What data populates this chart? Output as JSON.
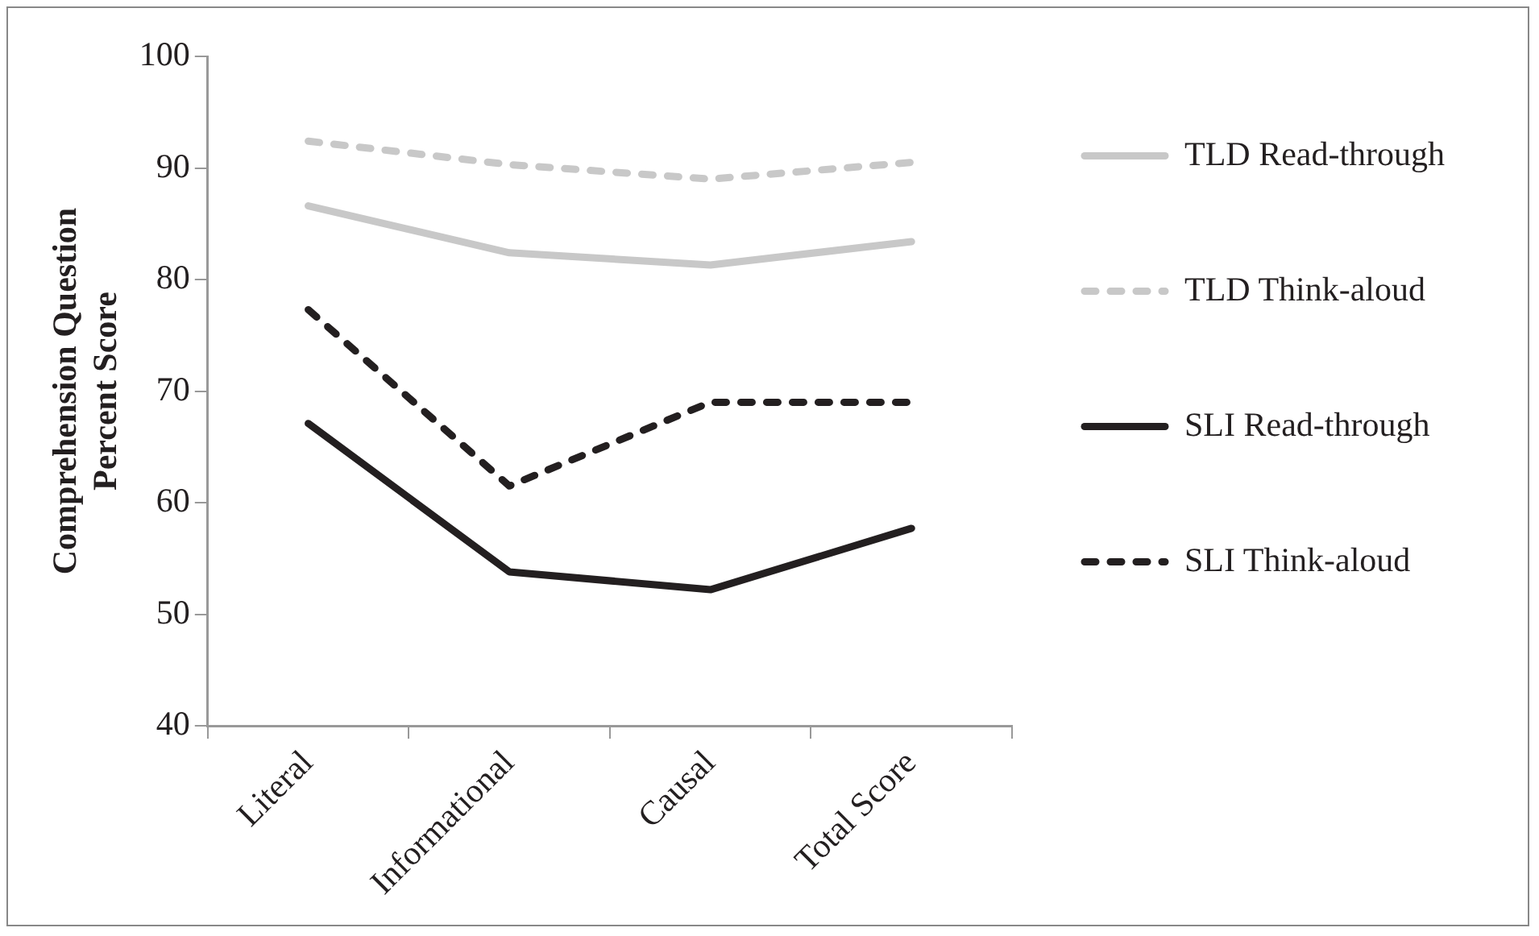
{
  "chart_data": {
    "type": "line",
    "ylabel": "Comprehension Question\nPercent Score",
    "categories": [
      "Literal",
      "Informational",
      "Causal",
      "Total Score"
    ],
    "series": [
      {
        "name": "TLD Read-through",
        "color": "#c8c8c8",
        "line_style": "solid",
        "values": [
          86.6,
          82.4,
          81.3,
          83.4
        ]
      },
      {
        "name": "TLD Think-aloud",
        "color": "#c8c8c8",
        "line_style": "dashed",
        "values": [
          92.4,
          90.3,
          89.0,
          90.5
        ]
      },
      {
        "name": "SLI Read-through",
        "color": "#231f20",
        "line_style": "solid",
        "values": [
          67.1,
          53.8,
          52.2,
          57.7
        ]
      },
      {
        "name": "SLI Think-aloud",
        "color": "#231f20",
        "line_style": "dashed",
        "values": [
          77.3,
          61.5,
          69.0,
          69.0
        ]
      }
    ],
    "ylim": [
      40,
      100
    ],
    "yticks": [
      40,
      50,
      60,
      70,
      80,
      90,
      100
    ],
    "grid": false,
    "legend": "right",
    "marker": "none"
  }
}
